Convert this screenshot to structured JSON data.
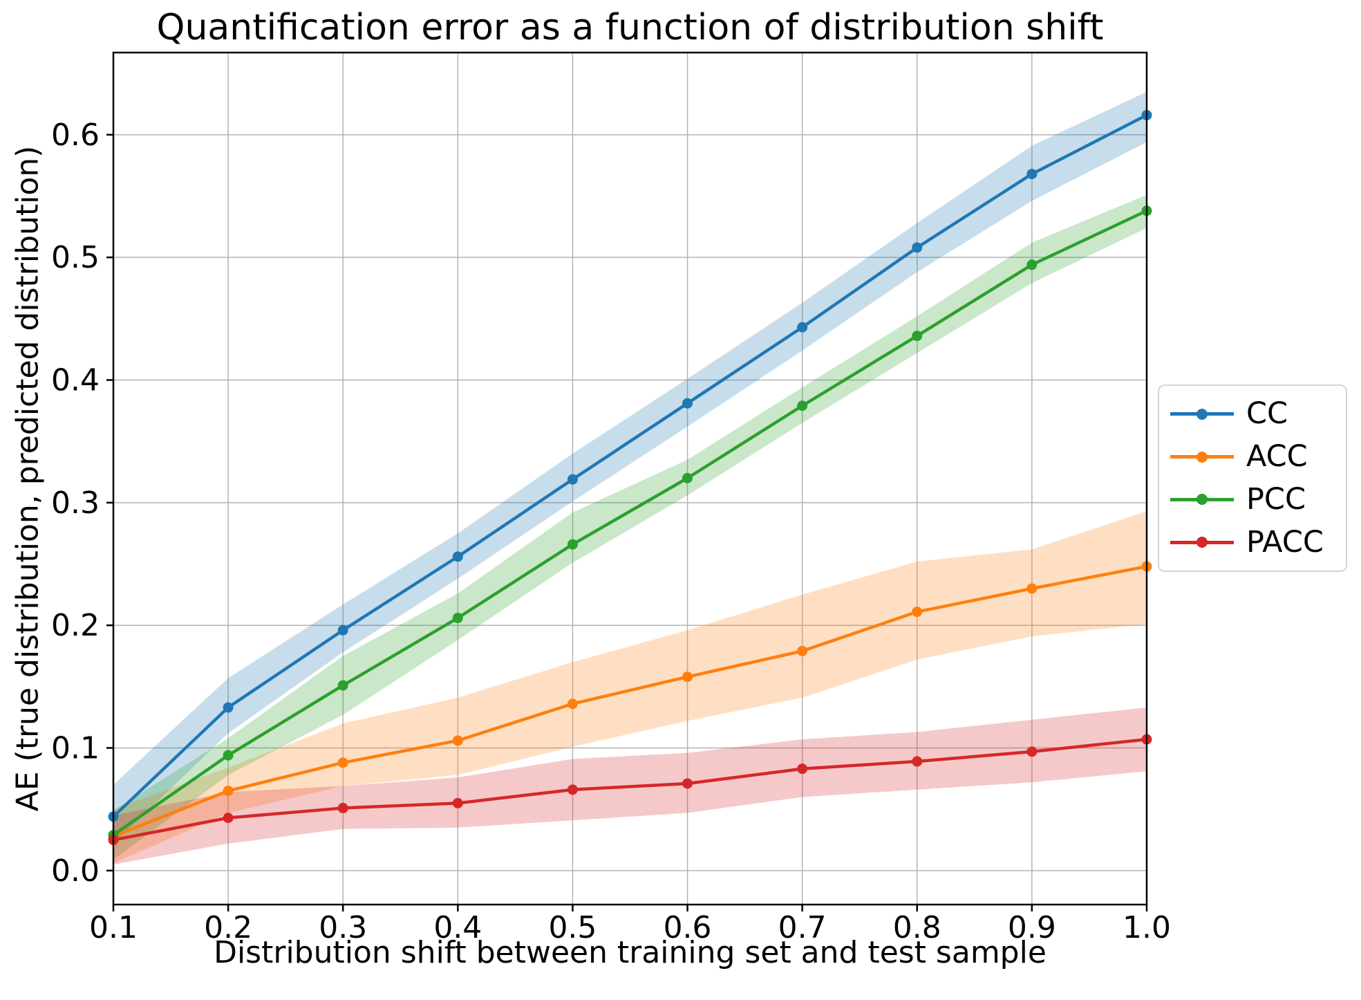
{
  "title": "Quantification error as a function of distribution shift",
  "x_axis": {
    "label": "Distribution shift between training set and test sample",
    "tick_labels": [
      "0.1",
      "0.2",
      "0.3",
      "0.4",
      "0.5",
      "0.6",
      "0.7",
      "0.8",
      "0.9",
      "1.0"
    ],
    "tick_values": [
      0.1,
      0.2,
      0.3,
      0.4,
      0.5,
      0.6,
      0.7,
      0.8,
      0.9,
      1.0
    ]
  },
  "y_axis": {
    "label": "AE (true distribution, predicted distribution)",
    "tick_labels": [
      "0.0",
      "0.1",
      "0.2",
      "0.3",
      "0.4",
      "0.5",
      "0.6"
    ],
    "tick_values": [
      0.0,
      0.1,
      0.2,
      0.3,
      0.4,
      0.5,
      0.6
    ]
  },
  "legend": {
    "position": "center right, outside axes",
    "items": [
      "CC",
      "ACC",
      "PCC",
      "PACC"
    ]
  },
  "chart_data": {
    "type": "line",
    "x": [
      0.1,
      0.2,
      0.3,
      0.4,
      0.5,
      0.6,
      0.7,
      0.8,
      0.9,
      1.0
    ],
    "xlim": [
      0.1,
      1.0
    ],
    "ylim": [
      -0.0277,
      0.667
    ],
    "grid": true,
    "grid_color": "#b3b3b3",
    "band_opacity": 0.25,
    "marker": "circle",
    "series": [
      {
        "name": "CC",
        "color": "#1f77b4",
        "values": [
          0.044,
          0.133,
          0.196,
          0.256,
          0.319,
          0.381,
          0.443,
          0.508,
          0.568,
          0.616
        ],
        "band_lower": [
          0.022,
          0.112,
          0.178,
          0.238,
          0.301,
          0.362,
          0.424,
          0.488,
          0.546,
          0.594
        ],
        "band_upper": [
          0.07,
          0.157,
          0.217,
          0.275,
          0.34,
          0.401,
          0.463,
          0.528,
          0.591,
          0.635
        ]
      },
      {
        "name": "ACC",
        "color": "#ff7f0e",
        "values": [
          0.028,
          0.065,
          0.088,
          0.106,
          0.136,
          0.158,
          0.179,
          0.211,
          0.23,
          0.248
        ],
        "band_lower": [
          0.006,
          0.047,
          0.069,
          0.078,
          0.101,
          0.122,
          0.141,
          0.172,
          0.191,
          0.201
        ],
        "band_upper": [
          0.05,
          0.084,
          0.12,
          0.141,
          0.17,
          0.196,
          0.225,
          0.252,
          0.262,
          0.293
        ]
      },
      {
        "name": "PCC",
        "color": "#2ca02c",
        "values": [
          0.029,
          0.094,
          0.151,
          0.206,
          0.266,
          0.32,
          0.379,
          0.436,
          0.494,
          0.538
        ],
        "band_lower": [
          0.009,
          0.078,
          0.127,
          0.188,
          0.251,
          0.306,
          0.365,
          0.422,
          0.479,
          0.524
        ],
        "band_upper": [
          0.049,
          0.108,
          0.175,
          0.226,
          0.292,
          0.335,
          0.394,
          0.452,
          0.512,
          0.551
        ]
      },
      {
        "name": "PACC",
        "color": "#d62728",
        "values": [
          0.025,
          0.043,
          0.051,
          0.055,
          0.066,
          0.071,
          0.083,
          0.089,
          0.097,
          0.107
        ],
        "band_lower": [
          0.005,
          0.022,
          0.034,
          0.035,
          0.041,
          0.047,
          0.06,
          0.066,
          0.072,
          0.081
        ],
        "band_upper": [
          0.045,
          0.064,
          0.069,
          0.076,
          0.091,
          0.096,
          0.107,
          0.113,
          0.123,
          0.133
        ]
      }
    ]
  }
}
